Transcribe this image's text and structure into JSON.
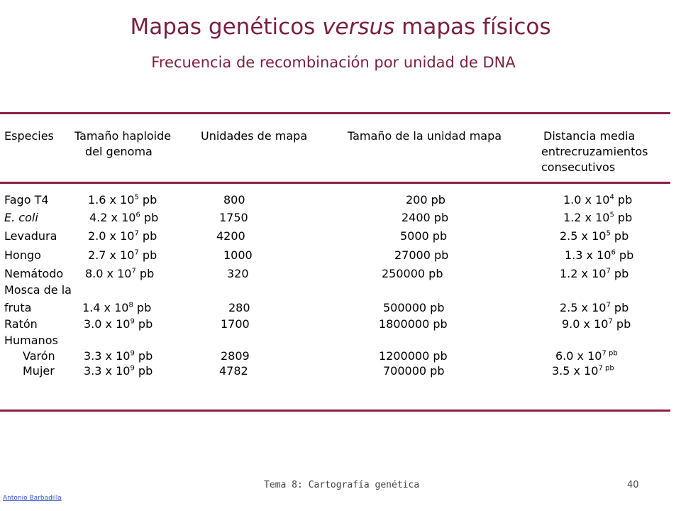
{
  "title_prefix": "Mapas genéticos ",
  "title_italic": "versus",
  "title_suffix": " mapas físicos",
  "subtitle": "Frecuencia de recombinación por unidad de DNA",
  "headers": {
    "species": "Especies",
    "genome_line1": "Tamaño haploide",
    "genome_line2": "del genoma",
    "map_units": "Unidades de mapa",
    "unit_size": "Tamaño de la unidad mapa",
    "distance_line1": "Distancia media",
    "distance_line2": "entrecruzamientos",
    "distance_line3": "consecutivos"
  },
  "rows": [
    {
      "species": "Fago T4",
      "genome_base": "1.6 x 10",
      "genome_exp": "5",
      "genome_unit": " pb",
      "map_units": "800",
      "unit_size": "200 pb",
      "dist_base": "1.0 x 10",
      "dist_exp": "4",
      "dist_unit": " pb"
    },
    {
      "species": "E. coli",
      "genome_base": "4.2 x 10",
      "genome_exp": "6",
      "genome_unit": " pb",
      "map_units": "1750",
      "unit_size": "2400 pb",
      "dist_base": "1.2 x 10",
      "dist_exp": "5",
      "dist_unit": " pb"
    },
    {
      "species": "Levadura",
      "genome_base": "2.0 x 10",
      "genome_exp": "7",
      "genome_unit": " pb",
      "map_units": "4200",
      "unit_size": "5000 pb",
      "dist_base": "2.5 x 10",
      "dist_exp": "5",
      "dist_unit": " pb"
    },
    {
      "species": "Hongo",
      "genome_base": "2.7 x 10",
      "genome_exp": "7",
      "genome_unit": " pb",
      "map_units": "1000",
      "unit_size": "27000 pb",
      "dist_base": "1.3 x 10",
      "dist_exp": "6",
      "dist_unit": " pb"
    },
    {
      "species": "Nemátodo",
      "genome_base": "8.0 x 10",
      "genome_exp": "7",
      "genome_unit": " pb",
      "map_units": "320",
      "unit_size": "250000 pb",
      "dist_base": "1.2 x 10",
      "dist_exp": "7",
      "dist_unit": " pb"
    },
    {
      "species": "Mosca de la",
      "genome_base": "",
      "genome_exp": "",
      "genome_unit": "",
      "map_units": "",
      "unit_size": "",
      "dist_base": "",
      "dist_exp": "",
      "dist_unit": ""
    },
    {
      "species": "fruta",
      "genome_base": "1.4 x 10",
      "genome_exp": "8",
      "genome_unit": " pb",
      "map_units": "280",
      "unit_size": "500000 pb",
      "dist_base": "2.5 x 10",
      "dist_exp": "7",
      "dist_unit": " pb"
    },
    {
      "species": "Ratón",
      "genome_base": "3.0 x 10",
      "genome_exp": "9",
      "genome_unit": " pb",
      "map_units": "1700",
      "unit_size": "1800000 pb",
      "dist_base": "9.0 x 10",
      "dist_exp": "7",
      "dist_unit": " pb"
    },
    {
      "species": "Humanos",
      "genome_base": "",
      "genome_exp": "",
      "genome_unit": "",
      "map_units": "",
      "unit_size": "",
      "dist_base": "",
      "dist_exp": "",
      "dist_unit": ""
    },
    {
      "species": "Varón",
      "genome_base": "3.3 x 10",
      "genome_exp": "9",
      "genome_unit": " pb",
      "map_units": "2809",
      "unit_size": "1200000 pb",
      "dist_base": "6.0 x 10",
      "dist_exp": "7 pb",
      "dist_unit": ""
    },
    {
      "species": "Mujer",
      "genome_base": "3.3 x 10",
      "genome_exp": "9",
      "genome_unit": " pb",
      "map_units": "4782",
      "unit_size": "700000 pb",
      "dist_base": "3.5 x 10",
      "dist_exp": "7 pb",
      "dist_unit": ""
    }
  ],
  "footer": {
    "topic": "Tema 8: Cartografía genética",
    "page": "40",
    "author": "Antonio Barbadilla"
  },
  "colors": {
    "title": "#7a1f3d",
    "rule": "#8b1f45",
    "author_link": "#3355cc"
  }
}
